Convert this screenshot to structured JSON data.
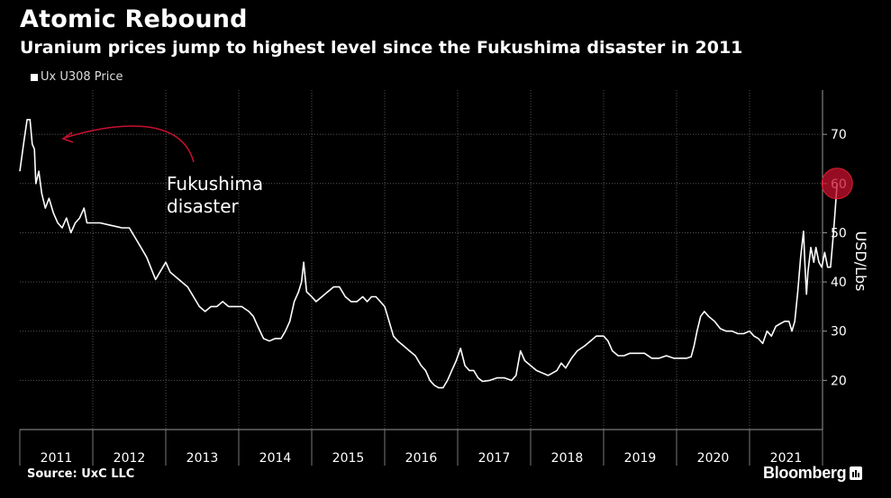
{
  "title": "Atomic Rebound",
  "subtitle": "Uranium prices jump to highest level since the Fukushima disaster in 2011",
  "legend": {
    "label": "Ux U308 Price"
  },
  "source": "Source: UxC LLC",
  "brand": "Bloomberg",
  "colors": {
    "background": "#000000",
    "line": "#ffffff",
    "highlight": "#c8102e",
    "annotation_arrow": "#c8102e",
    "grid": "#555555"
  },
  "annotation": {
    "line1": "Fukushima",
    "line2": "disaster"
  },
  "chart_data": {
    "type": "line",
    "title": "Atomic Rebound",
    "subtitle": "Uranium prices jump to highest level since the Fukushima disaster in 2011",
    "ylabel": "USD/Lbs",
    "xlabel": "",
    "ylim": [
      10,
      79
    ],
    "xlim": [
      2011.0,
      2022.0
    ],
    "y_ticks": [
      20,
      30,
      40,
      50,
      60,
      70
    ],
    "x_ticks": [
      "2011",
      "2012",
      "2013",
      "2014",
      "2015",
      "2016",
      "2017",
      "2018",
      "2019",
      "2020",
      "2021"
    ],
    "grid": "dotted",
    "legend_position": "top-left",
    "series": [
      {
        "name": "Ux U308 Price",
        "points": [
          [
            2011.0,
            62.5
          ],
          [
            2011.06,
            69
          ],
          [
            2011.1,
            73
          ],
          [
            2011.14,
            73
          ],
          [
            2011.17,
            68
          ],
          [
            2011.2,
            67
          ],
          [
            2011.22,
            60
          ],
          [
            2011.26,
            62.5
          ],
          [
            2011.3,
            58
          ],
          [
            2011.35,
            55
          ],
          [
            2011.4,
            57
          ],
          [
            2011.46,
            54
          ],
          [
            2011.52,
            52
          ],
          [
            2011.58,
            51
          ],
          [
            2011.64,
            53
          ],
          [
            2011.7,
            50
          ],
          [
            2011.76,
            52
          ],
          [
            2011.82,
            53
          ],
          [
            2011.88,
            55
          ],
          [
            2011.92,
            52
          ],
          [
            2011.98,
            52
          ],
          [
            2012.1,
            52
          ],
          [
            2012.25,
            51.5
          ],
          [
            2012.4,
            51
          ],
          [
            2012.5,
            51
          ],
          [
            2012.58,
            49
          ],
          [
            2012.66,
            47
          ],
          [
            2012.74,
            45
          ],
          [
            2012.82,
            42
          ],
          [
            2012.86,
            40.5
          ],
          [
            2012.92,
            42
          ],
          [
            2013.0,
            44
          ],
          [
            2013.06,
            42
          ],
          [
            2013.14,
            41
          ],
          [
            2013.22,
            40
          ],
          [
            2013.3,
            39
          ],
          [
            2013.38,
            37
          ],
          [
            2013.46,
            35
          ],
          [
            2013.54,
            34
          ],
          [
            2013.62,
            35
          ],
          [
            2013.7,
            35
          ],
          [
            2013.78,
            36
          ],
          [
            2013.86,
            35
          ],
          [
            2013.94,
            35
          ],
          [
            2014.04,
            35
          ],
          [
            2014.14,
            34
          ],
          [
            2014.2,
            33
          ],
          [
            2014.26,
            31
          ],
          [
            2014.34,
            28.5
          ],
          [
            2014.42,
            28
          ],
          [
            2014.5,
            28.5
          ],
          [
            2014.58,
            28.5
          ],
          [
            2014.64,
            30
          ],
          [
            2014.7,
            32
          ],
          [
            2014.76,
            36
          ],
          [
            2014.82,
            38
          ],
          [
            2014.86,
            40
          ],
          [
            2014.89,
            44
          ],
          [
            2014.93,
            38
          ],
          [
            2015.0,
            37
          ],
          [
            2015.06,
            36
          ],
          [
            2015.14,
            37
          ],
          [
            2015.22,
            38
          ],
          [
            2015.3,
            39
          ],
          [
            2015.38,
            39
          ],
          [
            2015.46,
            37
          ],
          [
            2015.54,
            36
          ],
          [
            2015.62,
            36
          ],
          [
            2015.7,
            37
          ],
          [
            2015.76,
            36
          ],
          [
            2015.82,
            37
          ],
          [
            2015.88,
            37
          ],
          [
            2015.94,
            36
          ],
          [
            2016.0,
            35
          ],
          [
            2016.06,
            32
          ],
          [
            2016.12,
            29
          ],
          [
            2016.18,
            28
          ],
          [
            2016.26,
            27
          ],
          [
            2016.34,
            26
          ],
          [
            2016.42,
            25
          ],
          [
            2016.5,
            23
          ],
          [
            2016.56,
            22
          ],
          [
            2016.62,
            20
          ],
          [
            2016.68,
            19
          ],
          [
            2016.74,
            18.5
          ],
          [
            2016.8,
            18.5
          ],
          [
            2016.86,
            20
          ],
          [
            2016.92,
            22
          ],
          [
            2016.98,
            24
          ],
          [
            2017.04,
            26.5
          ],
          [
            2017.1,
            23
          ],
          [
            2017.16,
            22
          ],
          [
            2017.22,
            22
          ],
          [
            2017.28,
            20.5
          ],
          [
            2017.34,
            19.8
          ],
          [
            2017.44,
            20
          ],
          [
            2017.54,
            20.5
          ],
          [
            2017.64,
            20.5
          ],
          [
            2017.74,
            20
          ],
          [
            2017.8,
            21
          ],
          [
            2017.86,
            26
          ],
          [
            2017.92,
            24
          ],
          [
            2018.0,
            23
          ],
          [
            2018.08,
            22
          ],
          [
            2018.16,
            21.5
          ],
          [
            2018.24,
            21
          ],
          [
            2018.3,
            21.5
          ],
          [
            2018.36,
            22
          ],
          [
            2018.42,
            23.5
          ],
          [
            2018.48,
            22.5
          ],
          [
            2018.56,
            24.5
          ],
          [
            2018.64,
            26
          ],
          [
            2018.74,
            27
          ],
          [
            2018.82,
            28
          ],
          [
            2018.9,
            29
          ],
          [
            2019.0,
            29
          ],
          [
            2019.06,
            28
          ],
          [
            2019.12,
            26
          ],
          [
            2019.2,
            25
          ],
          [
            2019.28,
            25
          ],
          [
            2019.36,
            25.5
          ],
          [
            2019.46,
            25.5
          ],
          [
            2019.56,
            25.5
          ],
          [
            2019.66,
            24.5
          ],
          [
            2019.76,
            24.5
          ],
          [
            2019.86,
            25
          ],
          [
            2019.96,
            24.5
          ],
          [
            2020.06,
            24.5
          ],
          [
            2020.14,
            24.5
          ],
          [
            2020.2,
            24.8
          ],
          [
            2020.24,
            27
          ],
          [
            2020.28,
            30
          ],
          [
            2020.33,
            33
          ],
          [
            2020.38,
            34
          ],
          [
            2020.44,
            33
          ],
          [
            2020.52,
            32
          ],
          [
            2020.6,
            30.5
          ],
          [
            2020.68,
            30
          ],
          [
            2020.76,
            30
          ],
          [
            2020.84,
            29.5
          ],
          [
            2020.92,
            29.5
          ],
          [
            2021.0,
            30
          ],
          [
            2021.06,
            29
          ],
          [
            2021.12,
            28.5
          ],
          [
            2021.18,
            27.5
          ],
          [
            2021.24,
            30
          ],
          [
            2021.3,
            29
          ],
          [
            2021.36,
            31
          ],
          [
            2021.42,
            31.5
          ],
          [
            2021.48,
            32
          ],
          [
            2021.54,
            32
          ],
          [
            2021.58,
            30
          ],
          [
            2021.62,
            32
          ],
          [
            2021.66,
            38
          ],
          [
            2021.7,
            45
          ],
          [
            2021.74,
            50.3
          ],
          [
            2021.76,
            43
          ],
          [
            2021.78,
            37.5
          ],
          [
            2021.8,
            42
          ],
          [
            2021.84,
            47
          ],
          [
            2021.88,
            44
          ],
          [
            2021.91,
            47
          ],
          [
            2021.95,
            44
          ],
          [
            2021.99,
            43
          ],
          [
            2022.03,
            46
          ],
          [
            2022.07,
            43
          ],
          [
            2022.11,
            43
          ],
          [
            2022.15,
            50
          ],
          [
            2022.2,
            60
          ]
        ]
      }
    ]
  }
}
